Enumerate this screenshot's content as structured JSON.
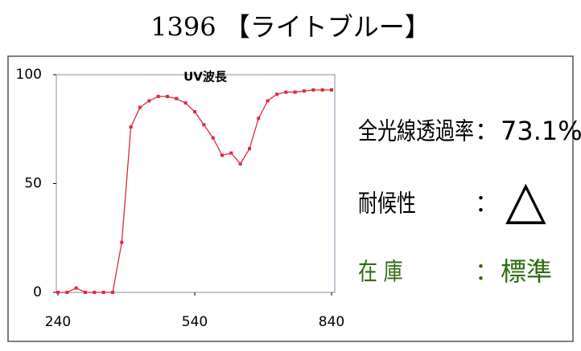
{
  "header": {
    "title": "1396 【ライトブルー】"
  },
  "chart_data": {
    "type": "line",
    "title": "UV波長",
    "x": [
      240,
      260,
      280,
      300,
      320,
      340,
      360,
      380,
      400,
      420,
      440,
      460,
      480,
      500,
      520,
      540,
      560,
      580,
      600,
      620,
      640,
      660,
      680,
      700,
      720,
      740,
      760,
      780,
      800,
      820,
      840
    ],
    "series": [
      {
        "color": "#e0283c",
        "values": [
          0,
          0,
          2,
          0,
          0,
          0,
          0,
          23,
          76,
          85,
          88,
          90,
          90,
          89,
          87,
          83,
          77,
          71,
          63,
          64,
          59,
          66,
          80,
          88,
          91,
          92,
          92,
          92.5,
          93,
          93,
          93
        ]
      }
    ],
    "xlim": [
      240,
      840
    ],
    "xticks": [
      240,
      540,
      840
    ],
    "ylim": [
      0,
      100
    ],
    "yticks": [
      0,
      50,
      100
    ]
  },
  "info": {
    "rows": [
      {
        "label": "全光線透過率",
        "sep": "：",
        "value": "73.1%",
        "color": "#000000"
      },
      {
        "label": "耐候性",
        "sep": "：",
        "value": "△",
        "color": "#000000"
      },
      {
        "label": "在 庫",
        "sep": "：",
        "value": "標準",
        "color": "#2e6b10"
      }
    ]
  }
}
